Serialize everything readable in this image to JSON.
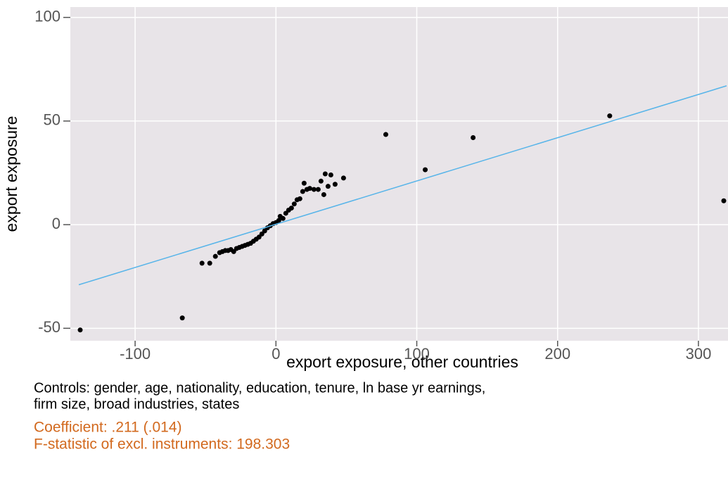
{
  "chart_data": {
    "type": "scatter",
    "x_label": "export exposure, other countries",
    "y_label": "export exposure",
    "xlim": [
      -146,
      321
    ],
    "ylim": [
      -56,
      105
    ],
    "xticks": [
      -100,
      0,
      100,
      200,
      300
    ],
    "yticks": [
      -50,
      0,
      50,
      100
    ],
    "grid": true,
    "point_color": "#000000",
    "x": [
      -139,
      -66.5,
      -52.5,
      -47,
      -43,
      -40,
      -38,
      -36,
      -34,
      -32,
      -30,
      -28,
      -26,
      -24,
      -22,
      -20,
      -18,
      -16,
      -14,
      -12,
      -10,
      -8,
      -6,
      -4,
      -2,
      0,
      2,
      3,
      5,
      7,
      9,
      11,
      13,
      15,
      17,
      19,
      20,
      22,
      24,
      27,
      30,
      32,
      34,
      35,
      37,
      39,
      42,
      48,
      78,
      106,
      140,
      237,
      318
    ],
    "values": [
      -50.8,
      -45,
      -18.6,
      -18.6,
      -15.3,
      -13.5,
      -13,
      -12.5,
      -12.5,
      -12,
      -13,
      -11.5,
      -11,
      -10.5,
      -10,
      -9.5,
      -9,
      -8,
      -7,
      -6,
      -4.5,
      -3,
      -1.5,
      -0.5,
      0.5,
      1,
      2,
      4,
      3,
      5.5,
      7,
      8,
      10,
      12,
      12.5,
      16,
      20,
      17,
      17.5,
      17,
      17,
      21,
      14.5,
      24.5,
      18.5,
      24,
      19.5,
      22.5,
      43.5,
      26.5,
      42,
      52.5,
      11.5
    ],
    "fit": {
      "x": [
        -140,
        320
      ],
      "values": [
        -29,
        67
      ],
      "color": "#56b4e9"
    },
    "notes": [
      "Controls: gender, age, nationality, education, tenure, ln base yr earnings,",
      "firm size, broad industries, states"
    ],
    "stats": [
      "Coefficient: .211 (.014)",
      "F-statistic of excl. instruments: 198.303"
    ],
    "stats_color": "#d2691e"
  }
}
